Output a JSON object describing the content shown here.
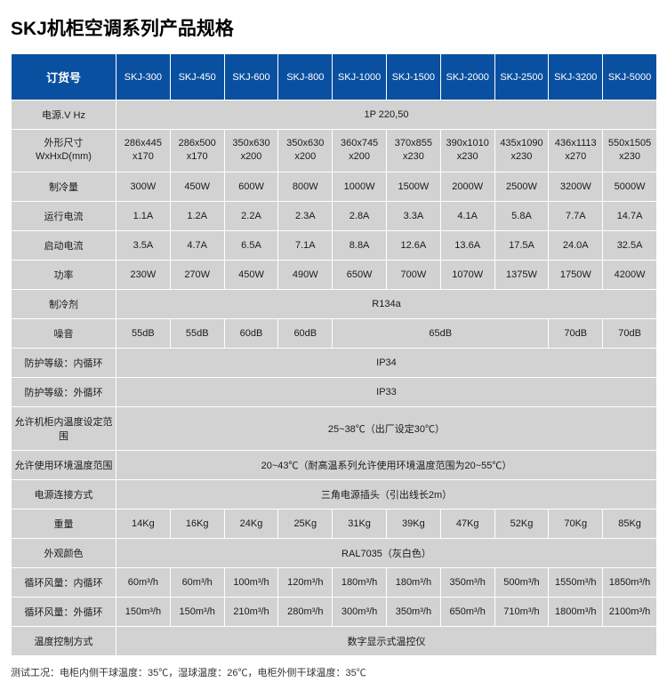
{
  "title": "SKJ机柜空调系列产品规格",
  "header": {
    "order_no": "订货号",
    "models": [
      "SKJ-300",
      "SKJ-450",
      "SKJ-600",
      "SKJ-800",
      "SKJ-1000",
      "SKJ-1500",
      "SKJ-2000",
      "SKJ-2500",
      "SKJ-3200",
      "SKJ-5000"
    ]
  },
  "rows": {
    "power_vhz": {
      "label": "电源.V Hz",
      "span_all": "1P 220,50"
    },
    "dimensions": {
      "label_l1": "外形尺寸",
      "label_l2": "WxHxD(mm)",
      "cells": [
        {
          "l1": "286x445",
          "l2": "x170"
        },
        {
          "l1": "286x500",
          "l2": "x170"
        },
        {
          "l1": "350x630",
          "l2": "x200"
        },
        {
          "l1": "350x630",
          "l2": "x200"
        },
        {
          "l1": "360x745",
          "l2": "x200"
        },
        {
          "l1": "370x855",
          "l2": "x230"
        },
        {
          "l1": "390x1010",
          "l2": "x230"
        },
        {
          "l1": "435x1090",
          "l2": "x230"
        },
        {
          "l1": "436x1113",
          "l2": "x270"
        },
        {
          "l1": "550x1505",
          "l2": "x230"
        }
      ]
    },
    "cooling": {
      "label": "制冷量",
      "cells": [
        "300W",
        "450W",
        "600W",
        "800W",
        "1000W",
        "1500W",
        "2000W",
        "2500W",
        "3200W",
        "5000W"
      ]
    },
    "run_current": {
      "label": "运行电流",
      "cells": [
        "1.1A",
        "1.2A",
        "2.2A",
        "2.3A",
        "2.8A",
        "3.3A",
        "4.1A",
        "5.8A",
        "7.7A",
        "14.7A"
      ]
    },
    "start_current": {
      "label": "启动电流",
      "cells": [
        "3.5A",
        "4.7A",
        "6.5A",
        "7.1A",
        "8.8A",
        "12.6A",
        "13.6A",
        "17.5A",
        "24.0A",
        "32.5A"
      ]
    },
    "power": {
      "label": "功率",
      "cells": [
        "230W",
        "270W",
        "450W",
        "490W",
        "650W",
        "700W",
        "1070W",
        "1375W",
        "1750W",
        "4200W"
      ]
    },
    "refrigerant": {
      "label": "制冷剂",
      "span_all": "R134a"
    },
    "noise": {
      "label": "噪音",
      "seg": [
        {
          "span": 1,
          "text": "55dB"
        },
        {
          "span": 1,
          "text": "55dB"
        },
        {
          "span": 1,
          "text": "60dB"
        },
        {
          "span": 1,
          "text": "60dB"
        },
        {
          "span": 4,
          "text": "65dB"
        },
        {
          "span": 1,
          "text": "70dB"
        },
        {
          "span": 1,
          "text": "70dB"
        }
      ]
    },
    "ip_inner": {
      "label": "防护等级：内循环",
      "span_all": "IP34"
    },
    "ip_outer": {
      "label": "防护等级：外循环",
      "span_all": "IP33"
    },
    "temp_setting": {
      "label": "允许机柜内温度设定范围",
      "span_all": "25~38℃（出厂设定30℃）"
    },
    "ambient_temp": {
      "label": "允许使用环境温度范围",
      "span_all": "20~43℃（耐高温系列允许使用环境温度范围为20~55℃）"
    },
    "power_conn": {
      "label": "电源连接方式",
      "span_all": "三角电源插头（引出线长2m）"
    },
    "weight": {
      "label": "重量",
      "cells": [
        "14Kg",
        "16Kg",
        "24Kg",
        "25Kg",
        "31Kg",
        "39Kg",
        "47Kg",
        "52Kg",
        "70Kg",
        "85Kg"
      ]
    },
    "appearance": {
      "label": "外观颜色",
      "span_all": "RAL7035（灰白色）"
    },
    "airflow_inner": {
      "label": "循环风量：内循环",
      "cells": [
        "60m³/h",
        "60m³/h",
        "100m³/h",
        "120m³/h",
        "180m³/h",
        "180m³/h",
        "350m³/h",
        "500m³/h",
        "1550m³/h",
        "1850m³/h"
      ]
    },
    "airflow_outer": {
      "label": "循环风量：外循环",
      "cells": [
        "150m³/h",
        "150m³/h",
        "210m³/h",
        "280m³/h",
        "300m³/h",
        "350m³/h",
        "650m³/h",
        "710m³/h",
        "1800m³/h",
        "2100m³/h"
      ]
    },
    "temp_control": {
      "label": "温度控制方式",
      "span_all": "数字显示式温控仪"
    }
  },
  "footnote": "测试工况：电柜内侧干球温度：35℃，湿球温度：26℃，电柜外侧干球温度：35℃",
  "style": {
    "header_bg": "#0a50a0",
    "header_fg": "#ffffff",
    "cell_bg": "#d2d2d2",
    "border": "#ffffff",
    "title_fontsize": 21,
    "cell_fontsize": 11
  }
}
